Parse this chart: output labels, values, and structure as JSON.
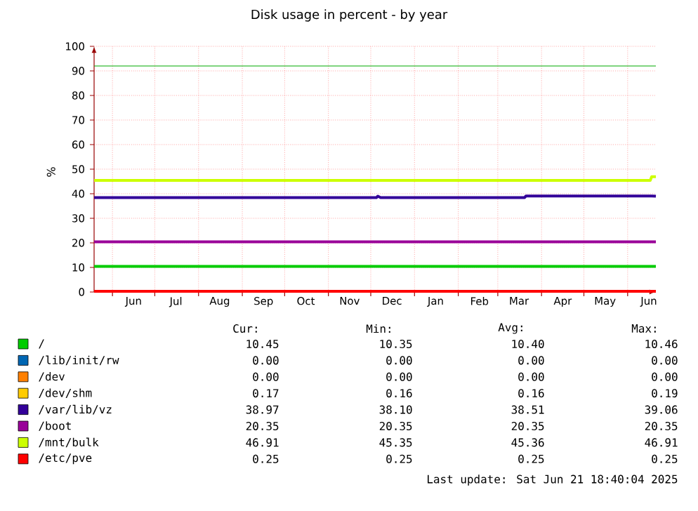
{
  "chart_data": {
    "type": "line",
    "title": "Disk usage in percent - by year",
    "ylabel": "%",
    "x": [
      "2024-05-19",
      "2024-12-05",
      "2024-12-06",
      "2024-12-08",
      "2025-03-20",
      "2025-03-21",
      "2025-06-17",
      "2025-06-18",
      "2025-06-21"
    ],
    "xlim": [
      "2024-05-19",
      "2025-06-21"
    ],
    "xticks": [
      {
        "value": "2024-06-01",
        "label": null
      },
      {
        "value": "2024-07-01",
        "label": null
      },
      {
        "value": "2024-08-01",
        "label": null
      },
      {
        "value": "2024-09-01",
        "label": null
      },
      {
        "value": "2024-10-01",
        "label": null
      },
      {
        "value": "2024-11-01",
        "label": null
      },
      {
        "value": "2024-12-01",
        "label": null
      },
      {
        "value": "2025-01-01",
        "label": null
      },
      {
        "value": "2025-02-01",
        "label": null
      },
      {
        "value": "2025-03-01",
        "label": null
      },
      {
        "value": "2025-04-01",
        "label": null
      },
      {
        "value": "2025-05-01",
        "label": null
      },
      {
        "value": "2025-06-01",
        "label": null
      },
      {
        "value": "2024-06-16",
        "label": "Jun"
      },
      {
        "value": "2024-07-16",
        "label": "Jul"
      },
      {
        "value": "2024-08-16",
        "label": "Aug"
      },
      {
        "value": "2024-09-16",
        "label": "Sep"
      },
      {
        "value": "2024-10-16",
        "label": "Oct"
      },
      {
        "value": "2024-11-16",
        "label": "Nov"
      },
      {
        "value": "2024-12-16",
        "label": "Dec"
      },
      {
        "value": "2025-01-16",
        "label": "Jan"
      },
      {
        "value": "2025-02-16",
        "label": "Feb"
      },
      {
        "value": "2025-03-16",
        "label": "Mar"
      },
      {
        "value": "2025-04-16",
        "label": "Apr"
      },
      {
        "value": "2025-05-16",
        "label": "May"
      },
      {
        "value": "2025-06-16",
        "label": "Jun"
      }
    ],
    "ylim": [
      0,
      100
    ],
    "yticks": [
      0,
      10,
      20,
      30,
      40,
      50,
      60,
      70,
      80,
      90,
      100
    ],
    "grid": true,
    "legend": "bottom",
    "line_style": "solid",
    "marker": "none",
    "ref_lines": [
      {
        "axis": "y",
        "value": 92,
        "color": "#00aa00"
      }
    ],
    "series": [
      {
        "name": "/",
        "color": "#00cc00",
        "values": [
          10.4,
          10.4,
          10.4,
          10.4,
          10.4,
          10.4,
          10.4,
          10.4,
          10.4
        ]
      },
      {
        "name": "/lib/init/rw",
        "color": "#0066b3",
        "values": [
          null,
          null,
          null,
          null,
          null,
          null,
          null,
          null,
          null
        ]
      },
      {
        "name": "/dev",
        "color": "#ff8000",
        "values": [
          null,
          null,
          null,
          null,
          null,
          null,
          null,
          null,
          null
        ]
      },
      {
        "name": "/dev/shm",
        "color": "#ffcc00",
        "values": [
          null,
          null,
          null,
          null,
          null,
          null,
          null,
          null,
          null
        ]
      },
      {
        "name": "/var/lib/vz",
        "color": "#330099",
        "values": [
          38.4,
          38.4,
          39.0,
          38.4,
          38.4,
          39.1,
          39.1,
          39.1,
          39.0
        ]
      },
      {
        "name": "/boot",
        "color": "#990099",
        "values": [
          20.4,
          20.4,
          20.4,
          20.4,
          20.4,
          20.4,
          20.4,
          20.4,
          20.4
        ]
      },
      {
        "name": "/mnt/bulk",
        "color": "#ccff00",
        "values": [
          45.4,
          45.4,
          45.4,
          45.4,
          45.4,
          45.4,
          45.4,
          46.9,
          46.9
        ]
      },
      {
        "name": "/etc/pve",
        "color": "#ff0000",
        "values": [
          0.3,
          0.3,
          0.3,
          0.3,
          0.3,
          0.3,
          0.3,
          0.3,
          0.3
        ]
      }
    ],
    "annotations": [
      "Cur:",
      "Min:",
      "Avg:",
      "Max:",
      "10.45",
      "10.35",
      "10.40",
      "10.46",
      "0.00",
      "0.00",
      "0.00",
      "0.00",
      "0.00",
      "0.00",
      "0.00",
      "0.00",
      "0.17",
      "0.16",
      "0.16",
      "0.19",
      "38.97",
      "38.10",
      "38.51",
      "39.06",
      "20.35",
      "20.35",
      "20.35",
      "20.35",
      "46.91",
      "45.35",
      "45.36",
      "46.91",
      "0.25",
      "0.25",
      "0.25",
      "0.25",
      "Last update: Sat Jun 21 18:40:04 2025"
    ]
  }
}
